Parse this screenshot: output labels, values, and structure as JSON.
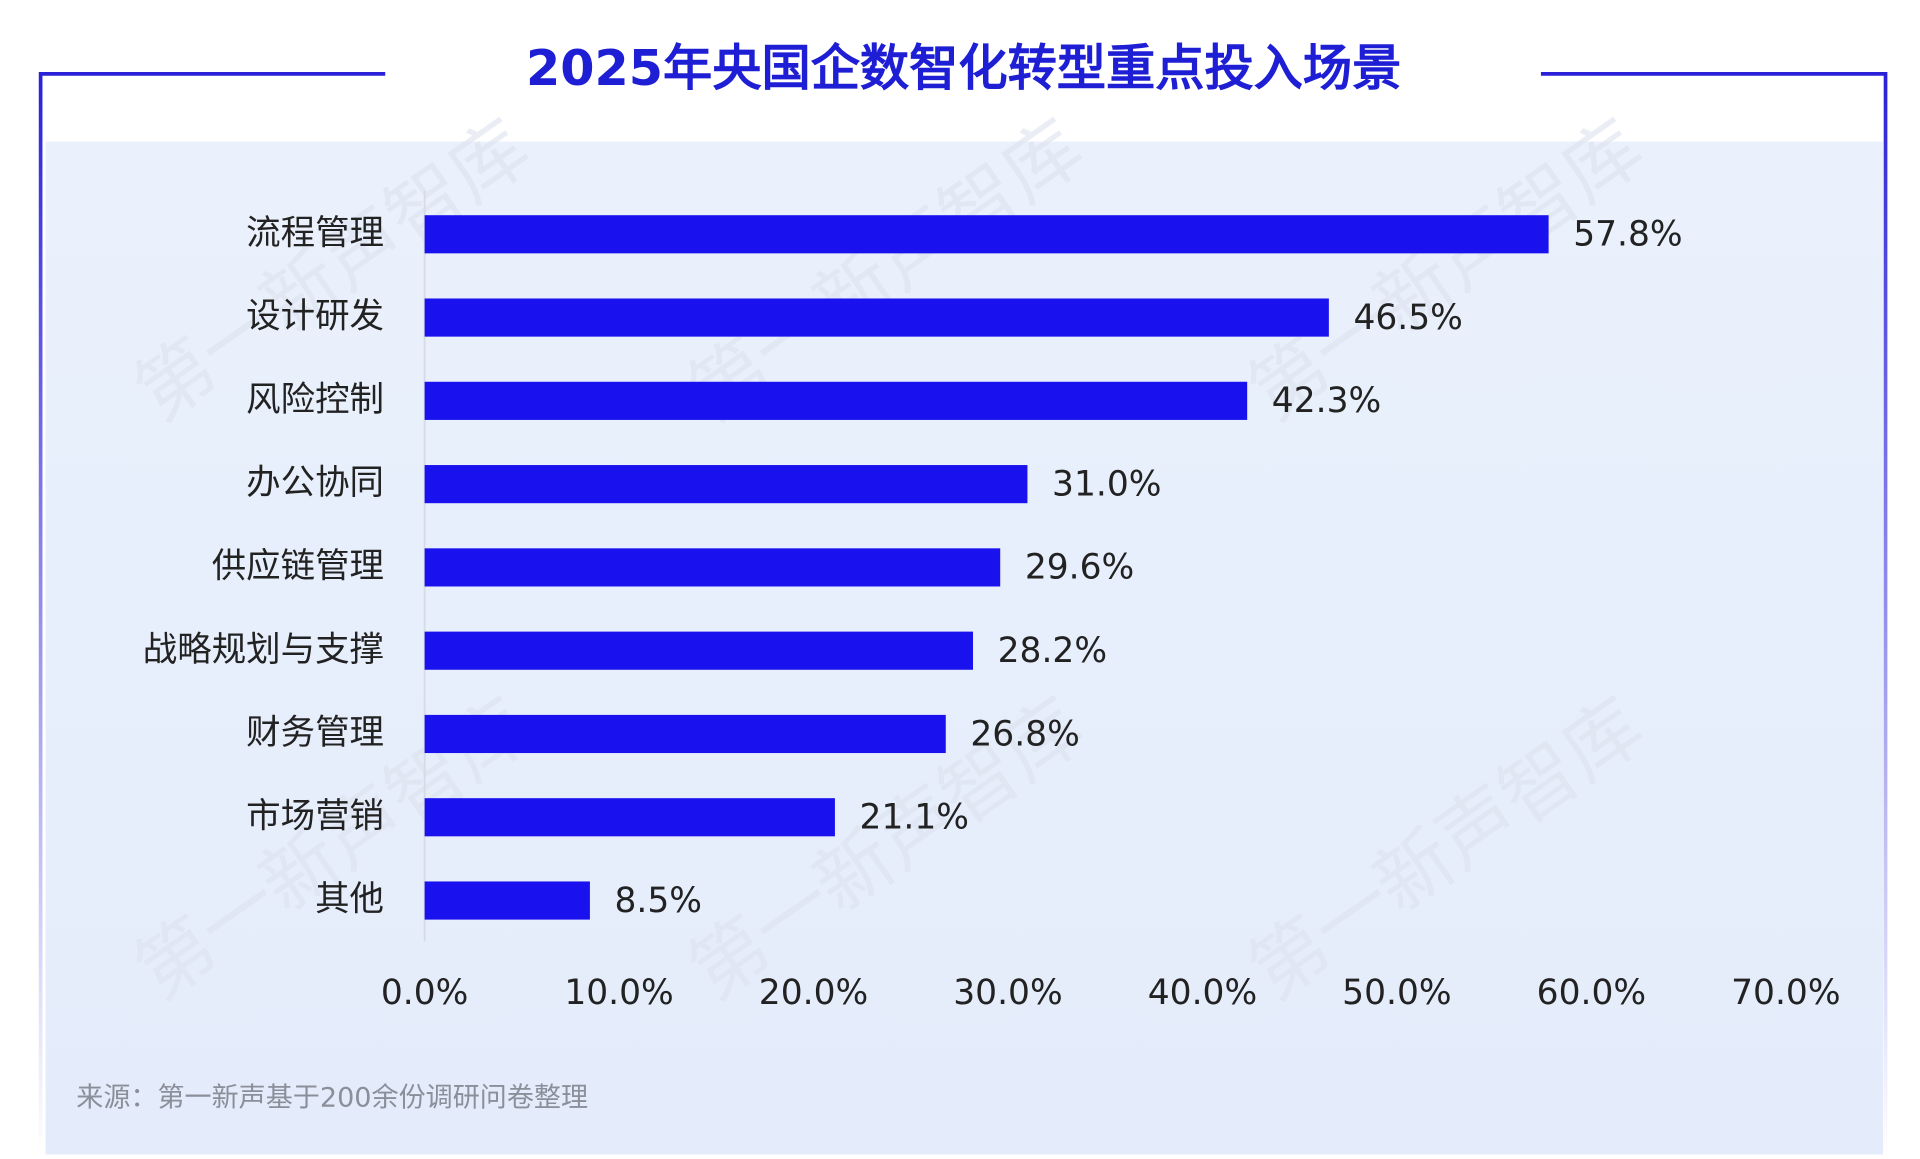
{
  "chart_data": {
    "type": "bar",
    "orientation": "horizontal",
    "title": "2025年央国企数智化转型重点投入场景",
    "categories": [
      "流程管理",
      "设计研发",
      "风险控制",
      "办公协同",
      "供应链管理",
      "战略规划与支撑",
      "财务管理",
      "市场营销",
      "其他"
    ],
    "values": [
      57.8,
      46.5,
      42.3,
      31.0,
      29.6,
      28.2,
      26.8,
      21.1,
      8.5
    ],
    "value_labels": [
      "57.8%",
      "46.5%",
      "42.3%",
      "31.0%",
      "29.6%",
      "28.2%",
      "26.8%",
      "21.1%",
      "8.5%"
    ],
    "color": "#1a12ee",
    "xlim": [
      0,
      70
    ],
    "xticks": [
      {
        "value": 0,
        "label": "0.0%"
      },
      {
        "value": 10,
        "label": "10.0%"
      },
      {
        "value": 20,
        "label": "20.0%"
      },
      {
        "value": 30,
        "label": "30.0%"
      },
      {
        "value": 40,
        "label": "40.0%"
      },
      {
        "value": 50,
        "label": "50.0%"
      },
      {
        "value": 60,
        "label": "60.0%"
      },
      {
        "value": 70,
        "label": "70.0%"
      }
    ],
    "grid": false,
    "source": "来源：第一新声基于200余份调研问卷整理",
    "watermark": "第一新声智库"
  }
}
